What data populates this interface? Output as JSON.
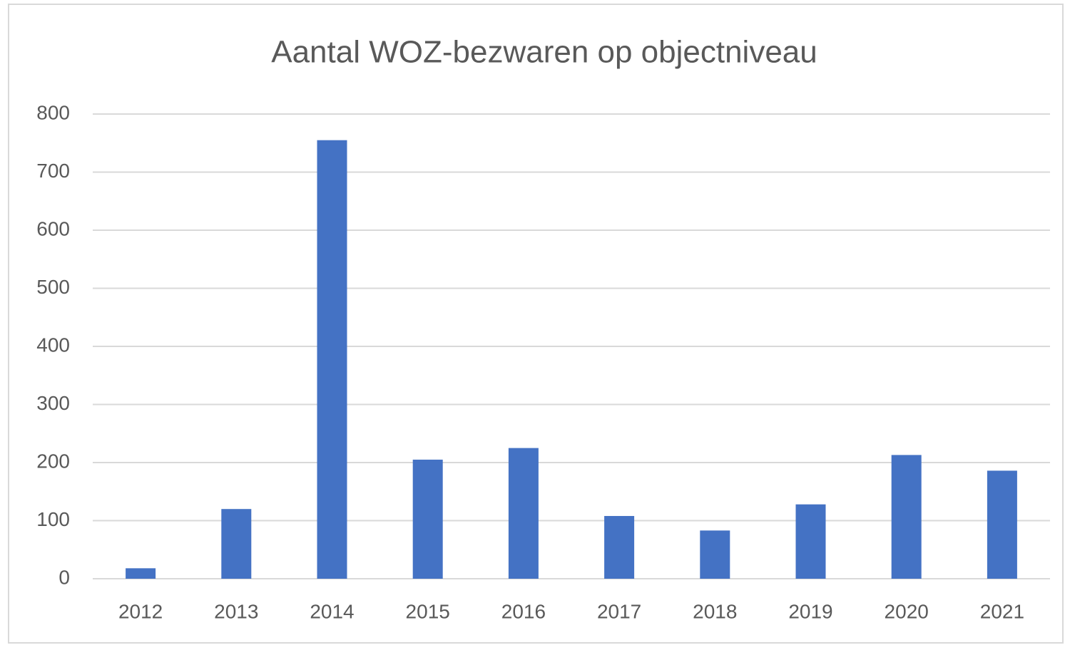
{
  "chart_data": {
    "type": "bar",
    "title": "Aantal WOZ-bezwaren op objectniveau",
    "categories": [
      "2012",
      "2013",
      "2014",
      "2015",
      "2016",
      "2017",
      "2018",
      "2019",
      "2020",
      "2021"
    ],
    "values": [
      18,
      120,
      755,
      205,
      225,
      108,
      83,
      128,
      213,
      186
    ],
    "color": "#4472c4",
    "ylim": [
      0,
      800
    ],
    "yticks": [
      0,
      100,
      200,
      300,
      400,
      500,
      600,
      700,
      800
    ],
    "grid": true
  }
}
